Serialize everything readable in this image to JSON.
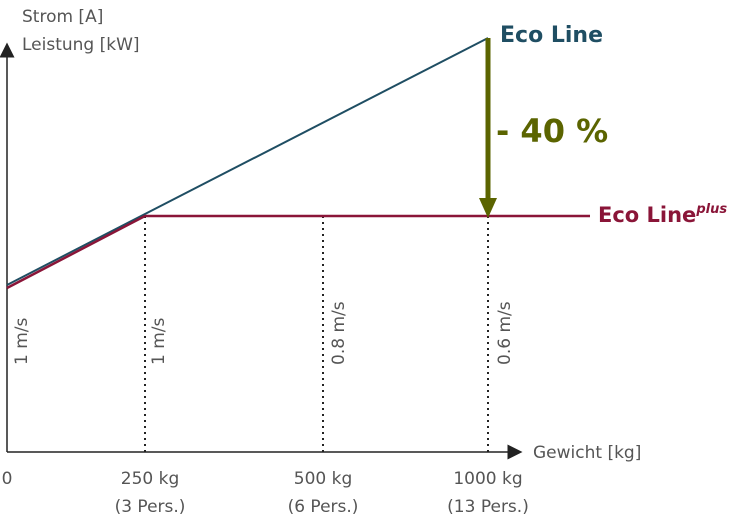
{
  "y_axis_label": [
    "Strom [A]",
    "Leistung [kW]"
  ],
  "x_axis_label": "Gewicht [kg]",
  "x_ticks": [
    {
      "label": "0"
    },
    {
      "label": "250 kg",
      "persons": "(3 Pers.)"
    },
    {
      "label": "500 kg",
      "persons": "(6 Pers.)"
    },
    {
      "label": "1000 kg",
      "persons": "(13 Pers.)"
    }
  ],
  "speeds": [
    "1 m/s",
    "1 m/s",
    "0.8 m/s",
    "0.6 m/s"
  ],
  "series": [
    {
      "name": "Eco Line"
    },
    {
      "name": "Eco Line",
      "superscript": "plus"
    }
  ],
  "reduction": "- 40 %"
}
